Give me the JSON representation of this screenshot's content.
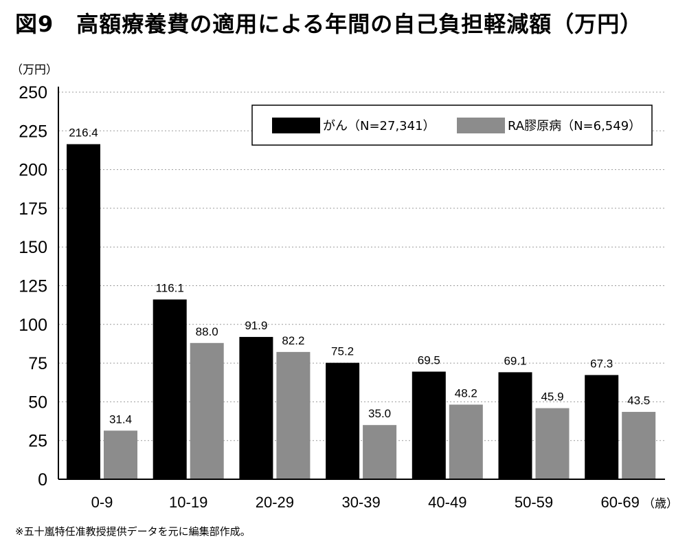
{
  "figure": {
    "title": "図9　高額療養費の適用による年間の自己負担軽減額（万円）",
    "footnote": "※五十嵐特任准教授提供データを元に編集部作成。"
  },
  "chart_data": {
    "type": "bar",
    "title": "図9　高額療養費の適用による年間の自己負担軽減額（万円）",
    "ylabel": "（万円）",
    "xlabel": "（歳）",
    "ylim": [
      0,
      250
    ],
    "yticks": [
      0,
      25,
      50,
      75,
      100,
      125,
      150,
      175,
      200,
      225,
      250
    ],
    "grid": "horizontal dotted",
    "legend_position": "top-right",
    "categories": [
      "0-9",
      "10-19",
      "20-29",
      "30-39",
      "40-49",
      "50-59",
      "60-69"
    ],
    "series": [
      {
        "name": "がん（N=27,341）",
        "color": "#000000",
        "values": [
          216.4,
          116.1,
          91.9,
          75.2,
          69.5,
          69.1,
          67.3
        ]
      },
      {
        "name": "RA膠原病（N=6,549）",
        "color": "#8c8c8c",
        "values": [
          31.4,
          88.0,
          82.2,
          35.0,
          48.2,
          45.9,
          43.5
        ]
      }
    ]
  }
}
